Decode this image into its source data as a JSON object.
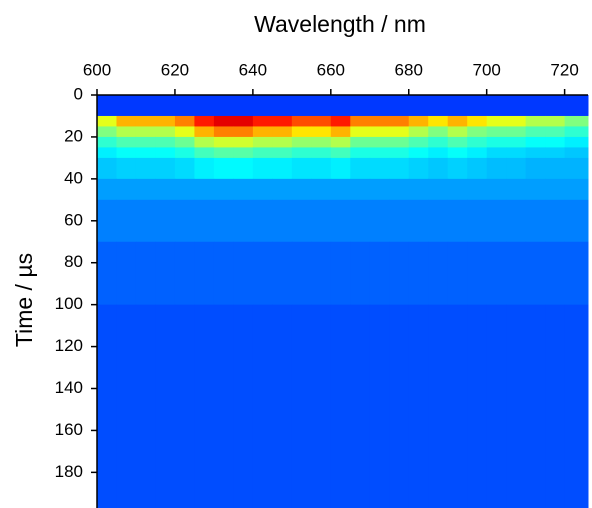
{
  "chart_data": {
    "type": "heatmap",
    "xlabel": "Wavelength / nm",
    "ylabel": "Time / µs",
    "colormap": "jet",
    "zlim": [
      0,
      1
    ],
    "x_edges": [
      600,
      605,
      610,
      615,
      620,
      625,
      630,
      635,
      640,
      645,
      650,
      655,
      660,
      665,
      670,
      675,
      680,
      685,
      690,
      695,
      700,
      705,
      710,
      715,
      720,
      726
    ],
    "y_edges": [
      0,
      10,
      15,
      20,
      25,
      30,
      40,
      50,
      70,
      100,
      197
    ],
    "z": [
      [
        0.18,
        0.18,
        0.18,
        0.18,
        0.18,
        0.18,
        0.18,
        0.18,
        0.18,
        0.18,
        0.18,
        0.18,
        0.18,
        0.18,
        0.18,
        0.18,
        0.18,
        0.18,
        0.18,
        0.18,
        0.18,
        0.18,
        0.18,
        0.18,
        0.18
      ],
      [
        0.6,
        0.7,
        0.7,
        0.7,
        0.75,
        0.85,
        0.9,
        0.9,
        0.85,
        0.85,
        0.8,
        0.8,
        0.85,
        0.75,
        0.75,
        0.75,
        0.7,
        0.65,
        0.7,
        0.65,
        0.6,
        0.6,
        0.55,
        0.55,
        0.5
      ],
      [
        0.5,
        0.55,
        0.55,
        0.55,
        0.6,
        0.7,
        0.75,
        0.75,
        0.7,
        0.7,
        0.65,
        0.65,
        0.7,
        0.6,
        0.6,
        0.6,
        0.55,
        0.5,
        0.55,
        0.5,
        0.48,
        0.48,
        0.45,
        0.45,
        0.42
      ],
      [
        0.42,
        0.45,
        0.45,
        0.45,
        0.48,
        0.55,
        0.58,
        0.58,
        0.55,
        0.55,
        0.52,
        0.52,
        0.55,
        0.48,
        0.48,
        0.48,
        0.45,
        0.42,
        0.45,
        0.42,
        0.4,
        0.4,
        0.38,
        0.38,
        0.36
      ],
      [
        0.36,
        0.38,
        0.38,
        0.38,
        0.4,
        0.44,
        0.46,
        0.46,
        0.44,
        0.44,
        0.42,
        0.42,
        0.44,
        0.4,
        0.4,
        0.4,
        0.38,
        0.36,
        0.38,
        0.36,
        0.34,
        0.34,
        0.33,
        0.33,
        0.32
      ],
      [
        0.32,
        0.33,
        0.33,
        0.33,
        0.34,
        0.36,
        0.37,
        0.37,
        0.36,
        0.36,
        0.35,
        0.35,
        0.36,
        0.34,
        0.34,
        0.34,
        0.33,
        0.32,
        0.33,
        0.32,
        0.31,
        0.31,
        0.3,
        0.3,
        0.3
      ],
      [
        0.28,
        0.28,
        0.28,
        0.28,
        0.28,
        0.28,
        0.28,
        0.28,
        0.28,
        0.28,
        0.28,
        0.28,
        0.28,
        0.28,
        0.28,
        0.28,
        0.28,
        0.28,
        0.28,
        0.28,
        0.28,
        0.28,
        0.28,
        0.28,
        0.28
      ],
      [
        0.25,
        0.25,
        0.25,
        0.25,
        0.25,
        0.25,
        0.25,
        0.25,
        0.25,
        0.25,
        0.25,
        0.25,
        0.25,
        0.25,
        0.25,
        0.25,
        0.25,
        0.25,
        0.25,
        0.25,
        0.25,
        0.25,
        0.25,
        0.25,
        0.25
      ],
      [
        0.22,
        0.22,
        0.22,
        0.22,
        0.22,
        0.22,
        0.22,
        0.22,
        0.22,
        0.22,
        0.22,
        0.22,
        0.22,
        0.22,
        0.22,
        0.22,
        0.22,
        0.22,
        0.22,
        0.22,
        0.22,
        0.22,
        0.22,
        0.22,
        0.22
      ],
      [
        0.2,
        0.2,
        0.2,
        0.2,
        0.2,
        0.2,
        0.2,
        0.2,
        0.2,
        0.2,
        0.2,
        0.2,
        0.2,
        0.2,
        0.2,
        0.2,
        0.2,
        0.2,
        0.2,
        0.2,
        0.2,
        0.2,
        0.2,
        0.2,
        0.2
      ]
    ],
    "xlim": [
      600,
      726
    ],
    "xticks": [
      600,
      620,
      640,
      660,
      680,
      700,
      720
    ],
    "xaxis_position": "top",
    "ylim": [
      0,
      197
    ],
    "yticks": [
      0,
      20,
      40,
      60,
      80,
      100,
      120,
      140,
      160,
      180
    ],
    "y_inverted": true
  }
}
